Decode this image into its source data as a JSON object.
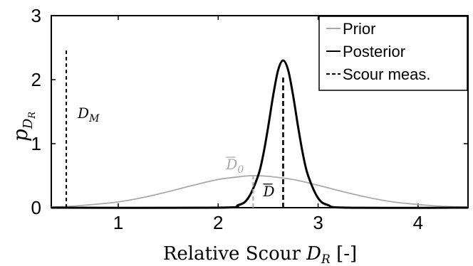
{
  "chart_data": {
    "type": "line",
    "xlabel": "Relative Scour",
    "xlabel_symbol": "D",
    "xlabel_subscript": "R",
    "xlabel_unit": "[-]",
    "ylabel_symbol": "p",
    "ylabel_subscript": "D",
    "ylabel_subsubscript": "R",
    "xlim": [
      0.33,
      4.5
    ],
    "ylim": [
      0,
      3
    ],
    "xticks": [
      "1",
      "2",
      "3",
      "4"
    ],
    "xtick_values": [
      1,
      2,
      3,
      4
    ],
    "yticks": [
      "0",
      "1",
      "2",
      "3"
    ],
    "ytick_values": [
      0,
      1,
      2,
      3
    ],
    "grid": false,
    "legend_position": "top-right",
    "series": [
      {
        "name": "Prior",
        "color": "#aaaaaa",
        "style": "solid",
        "x": [
          0.33,
          0.5,
          0.75,
          1.0,
          1.25,
          1.5,
          1.75,
          2.0,
          2.25,
          2.35,
          2.5,
          2.75,
          3.0,
          3.25,
          3.5,
          3.75,
          4.0,
          4.25,
          4.5
        ],
        "y": [
          0.01,
          0.02,
          0.05,
          0.09,
          0.16,
          0.25,
          0.35,
          0.44,
          0.49,
          0.5,
          0.49,
          0.44,
          0.35,
          0.25,
          0.16,
          0.09,
          0.05,
          0.02,
          0.01
        ]
      },
      {
        "name": "Posterior",
        "color": "#000000",
        "style": "solid",
        "x": [
          0.33,
          2.0,
          2.2,
          2.3,
          2.4,
          2.45,
          2.5,
          2.55,
          2.6,
          2.65,
          2.7,
          2.75,
          2.8,
          2.85,
          2.9,
          3.0,
          3.1,
          3.3,
          4.5
        ],
        "y": [
          0,
          0,
          0.04,
          0.15,
          0.5,
          0.82,
          1.26,
          1.75,
          2.15,
          2.3,
          2.15,
          1.75,
          1.26,
          0.82,
          0.5,
          0.15,
          0.04,
          0,
          0
        ]
      }
    ],
    "measurement": {
      "name": "Scour meas.",
      "color": "#000000",
      "style": "dashed",
      "lines": [
        {
          "x": 0.48,
          "y_top": 2.48,
          "label": "D",
          "label_subscript": "M"
        },
        {
          "x": 2.65,
          "y_top": 2.05,
          "label": "D",
          "overbar": true
        }
      ]
    },
    "prior_mean": {
      "x": 2.35,
      "y_top": 0.5,
      "label": "D",
      "label_subscript": "0",
      "overbar": true,
      "color": "#aaaaaa"
    },
    "legend": [
      {
        "label": "Prior",
        "color": "#aaaaaa",
        "style": "solid"
      },
      {
        "label": "Posterior",
        "color": "#000000",
        "style": "solid"
      },
      {
        "label": "Scour meas.",
        "color": "#000000",
        "style": "dashed"
      }
    ]
  }
}
